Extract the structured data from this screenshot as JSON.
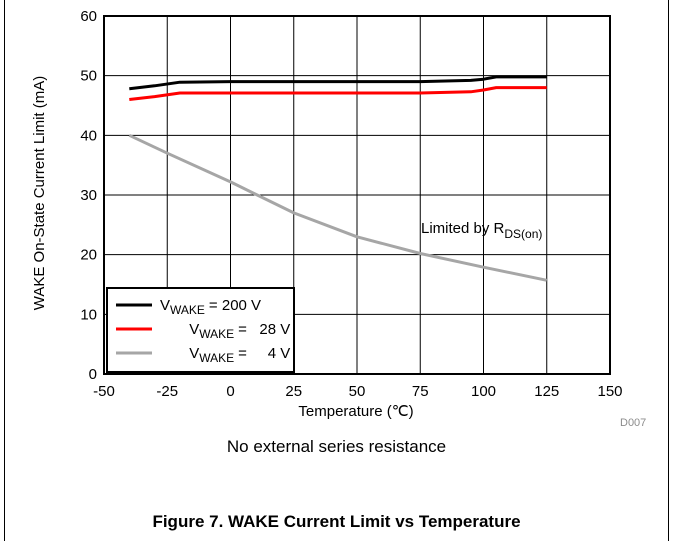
{
  "chart_data": {
    "type": "line",
    "xlabel": "Temperature  (℃)",
    "ylabel": "WAKE On-State Current Limit  (mA)",
    "xlim": [
      -50,
      150
    ],
    "ylim": [
      0,
      60
    ],
    "xticks": [
      -50,
      -25,
      0,
      25,
      50,
      75,
      100,
      125,
      150
    ],
    "yticks": [
      0,
      10,
      20,
      30,
      40,
      50,
      60
    ],
    "xtick_labels": [
      "-50",
      "-25",
      "0",
      "25",
      "50",
      "75",
      "100",
      "125",
      "150"
    ],
    "ytick_labels": [
      "0",
      "10",
      "20",
      "30",
      "40",
      "50",
      "60"
    ],
    "grid": true,
    "legend_position": "bottom-left",
    "series": [
      {
        "name_main": "V",
        "name_sub": "WAKE",
        "name_tail": "= 200 V",
        "color": "#000000",
        "x": [
          -40,
          -30,
          -20,
          0,
          25,
          50,
          75,
          95,
          100,
          105,
          110,
          125
        ],
        "y": [
          47.8,
          48.3,
          48.9,
          49,
          49,
          49,
          49,
          49.2,
          49.4,
          49.8,
          49.8,
          49.8
        ]
      },
      {
        "name_main": "V",
        "name_sub": "WAKE",
        "name_tail": "=   28 V",
        "color": "#ff0000",
        "x": [
          -40,
          -30,
          -20,
          0,
          25,
          50,
          75,
          95,
          100,
          105,
          110,
          125
        ],
        "y": [
          46,
          46.5,
          47.1,
          47.1,
          47.1,
          47.1,
          47.1,
          47.3,
          47.6,
          48,
          48,
          48
        ]
      },
      {
        "name_main": "V",
        "name_sub": "WAKE",
        "name_tail": "=     4 V",
        "color": "#a6a6a6",
        "x": [
          -40,
          -25,
          0,
          25,
          50,
          75,
          100,
          125
        ],
        "y": [
          40,
          37,
          32.2,
          27,
          23,
          20.2,
          17.9,
          15.7
        ]
      }
    ],
    "annotation": {
      "main": "Limited by R",
      "sub": "DS(on)"
    },
    "code_label": "D007"
  },
  "caption": "No external series resistance",
  "figure_title": "Figure 7. WAKE Current Limit vs Temperature"
}
